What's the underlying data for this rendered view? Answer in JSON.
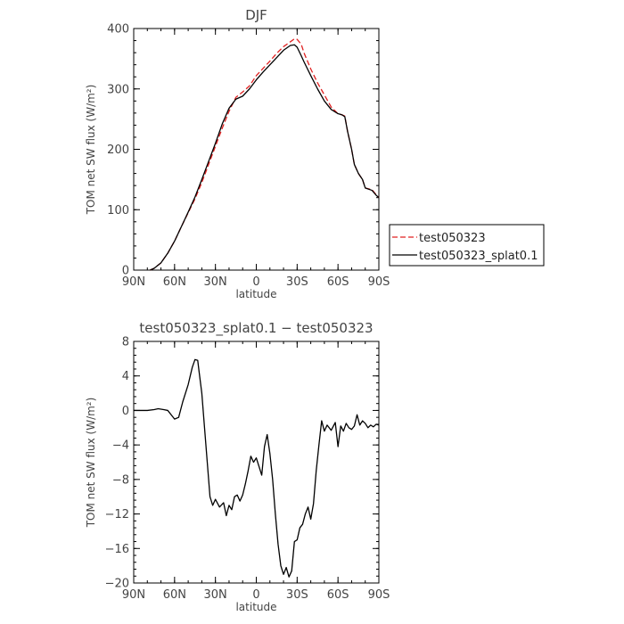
{
  "chart_data": [
    {
      "type": "line",
      "title": "DJF",
      "xlabel": "latitude",
      "ylabel": "TOM net SW flux (W/m²)",
      "xlim": [
        90,
        -90
      ],
      "ylim": [
        0,
        400
      ],
      "x_ticks": [
        90,
        60,
        30,
        0,
        -30,
        -60,
        -90
      ],
      "x_tick_labels": [
        "90N",
        "60N",
        "30N",
        "0",
        "30S",
        "60S",
        "90S"
      ],
      "y_ticks": [
        0,
        100,
        200,
        300,
        400
      ],
      "y_tick_labels": [
        "0",
        "100",
        "200",
        "300",
        "400"
      ],
      "grid": false,
      "legend_position": "right, outside plot",
      "series": [
        {
          "name": "test050323",
          "color": "#e02020",
          "style": "dashed",
          "x": [
            78,
            75,
            70,
            65,
            60,
            55,
            50,
            45,
            40,
            35,
            30,
            25,
            20,
            15,
            10,
            5,
            0,
            -5,
            -10,
            -15,
            -20,
            -25,
            -28,
            -30,
            -33,
            -35,
            -40,
            -45,
            -50,
            -55,
            -60,
            -63,
            -65,
            -67,
            -70,
            -72,
            -75,
            -78,
            -80,
            -85,
            -88,
            -90
          ],
          "y": [
            0,
            3,
            12,
            28,
            48,
            72,
            95,
            118,
            145,
            175,
            205,
            235,
            263,
            286,
            295,
            305,
            322,
            334,
            346,
            359,
            370,
            378,
            383,
            382,
            374,
            360,
            333,
            310,
            290,
            270,
            259,
            257,
            255,
            230,
            200,
            175,
            160,
            150,
            136,
            133,
            125,
            120
          ]
        },
        {
          "name": "test050323_splat0.1",
          "color": "#000000",
          "style": "solid",
          "x": [
            78,
            75,
            70,
            65,
            60,
            55,
            50,
            45,
            40,
            35,
            30,
            25,
            20,
            15,
            10,
            5,
            0,
            -5,
            -10,
            -15,
            -20,
            -25,
            -28,
            -30,
            -33,
            -35,
            -40,
            -45,
            -50,
            -55,
            -60,
            -63,
            -65,
            -67,
            -70,
            -72,
            -75,
            -78,
            -80,
            -85,
            -88,
            -90
          ],
          "y": [
            0,
            3,
            12,
            28,
            48,
            72,
            96,
            121,
            150,
            180,
            210,
            242,
            268,
            283,
            288,
            300,
            315,
            328,
            340,
            352,
            364,
            372,
            373,
            369,
            355,
            345,
            322,
            300,
            280,
            266,
            259,
            257,
            254,
            230,
            200,
            175,
            160,
            150,
            136,
            132,
            124,
            120
          ]
        }
      ]
    },
    {
      "type": "line",
      "title": "test050323_splat0.1 − test050323",
      "xlabel": "latitude",
      "ylabel": "TOM net SW flux (W/m²)",
      "xlim": [
        90,
        -90
      ],
      "ylim": [
        -20,
        8
      ],
      "x_ticks": [
        90,
        60,
        30,
        0,
        -30,
        -60,
        -90
      ],
      "x_tick_labels": [
        "90N",
        "60N",
        "30N",
        "0",
        "30S",
        "60S",
        "90S"
      ],
      "y_ticks": [
        8,
        4,
        0,
        -4,
        -8,
        -12,
        -16,
        -20
      ],
      "y_tick_labels": [
        "8",
        "4",
        "0",
        "−4",
        "−8",
        "−12",
        "−16",
        "−20"
      ],
      "grid": false,
      "series": [
        {
          "color": "#000000",
          "style": "solid",
          "x": [
            90,
            85,
            80,
            75,
            72,
            68,
            65,
            62,
            60,
            57,
            54,
            50,
            47,
            45,
            43,
            42,
            40,
            38,
            36,
            34,
            32,
            30,
            27,
            24,
            22,
            20,
            18,
            16,
            14,
            12,
            10,
            8,
            6,
            4,
            2,
            0,
            -2,
            -4,
            -6,
            -8,
            -10,
            -12,
            -14,
            -16,
            -18,
            -20,
            -22,
            -24,
            -26,
            -28,
            -30,
            -32,
            -34,
            -36,
            -38,
            -40,
            -42,
            -44,
            -46,
            -48,
            -50,
            -52,
            -55,
            -58,
            -60,
            -62,
            -64,
            -66,
            -68,
            -70,
            -72,
            -74,
            -76,
            -78,
            -80,
            -82,
            -84,
            -86,
            -88,
            -90
          ],
          "y": [
            0,
            0,
            0,
            0.1,
            0.2,
            0.1,
            0,
            -0.6,
            -1.0,
            -0.8,
            1.0,
            3.0,
            5.0,
            5.9,
            5.8,
            4.5,
            2.0,
            -2.0,
            -6.0,
            -10.0,
            -11.0,
            -10.3,
            -11.2,
            -10.7,
            -12.2,
            -11.0,
            -11.5,
            -10.0,
            -9.8,
            -10.5,
            -9.8,
            -8.5,
            -7.0,
            -5.3,
            -6.0,
            -5.5,
            -6.5,
            -7.5,
            -4.2,
            -2.8,
            -5.0,
            -8.0,
            -12.0,
            -15.5,
            -18.0,
            -19.0,
            -18.2,
            -19.3,
            -18.6,
            -15.2,
            -15.0,
            -13.6,
            -13.2,
            -12.0,
            -11.2,
            -12.6,
            -10.8,
            -7.0,
            -4.0,
            -1.2,
            -2.4,
            -1.7,
            -2.3,
            -1.4,
            -4.2,
            -1.8,
            -2.4,
            -1.5,
            -2.0,
            -2.2,
            -1.8,
            -0.5,
            -1.7,
            -1.2,
            -1.5,
            -2.0,
            -1.7,
            -1.9,
            -1.6,
            -1.7
          ]
        }
      ]
    }
  ]
}
